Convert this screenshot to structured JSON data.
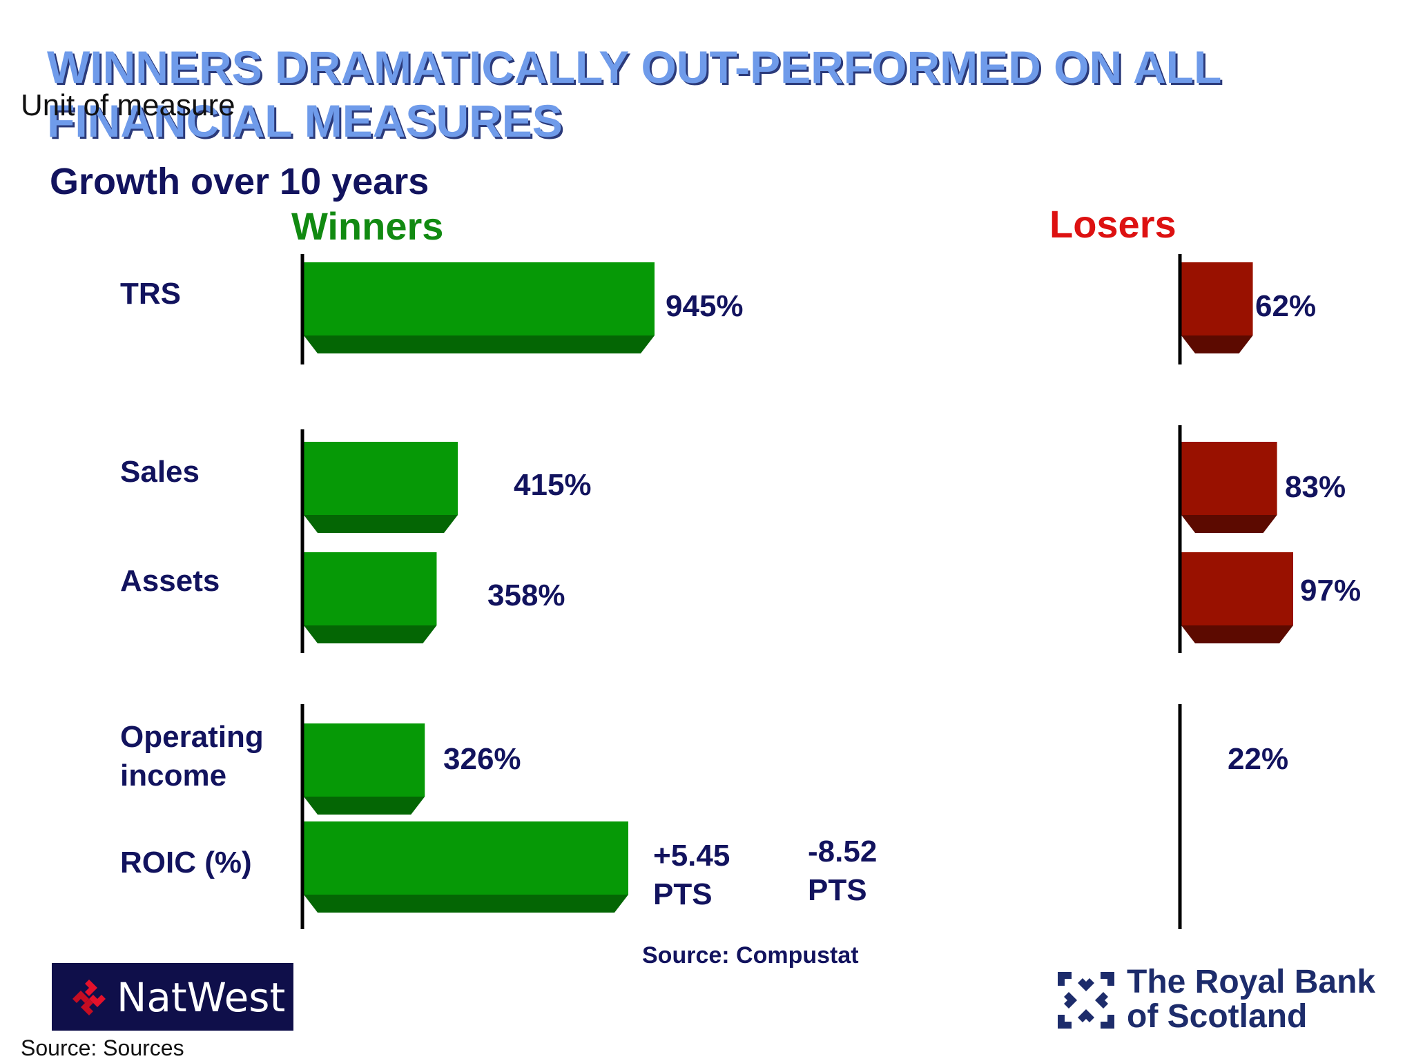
{
  "title": "WINNERS DRAMATICALLY OUT-PERFORMED ON ALL FINANCIAL MEASURES",
  "unit_label": "Unit of measure",
  "subtitle": "Growth over 10 years",
  "source_note": "Source: Compustat",
  "source_footer": "Source: Sources",
  "logos": {
    "natwest": "NatWest",
    "rbs": "The Royal Bank of Scotland"
  },
  "colors": {
    "winners_bar": "#069906",
    "winners_shade": "#046604",
    "losers_bar": "#991100",
    "losers_shade": "#5c0a00",
    "text": "#12135e",
    "title": "#6f9bea"
  },
  "chart_data": [
    {
      "type": "bar",
      "orientation": "horizontal",
      "group": "Winners",
      "categories": [
        "TRS",
        "Sales",
        "Assets",
        "Operating income",
        "ROIC (%)"
      ],
      "values": [
        945,
        415,
        358,
        326,
        5.45
      ],
      "value_labels": [
        "945%",
        "415%",
        "358%",
        "326%",
        "+5.45 PTS"
      ],
      "units": [
        "%",
        "%",
        "%",
        "%",
        "PTS"
      ]
    },
    {
      "type": "bar",
      "orientation": "horizontal",
      "group": "Losers",
      "categories": [
        "TRS",
        "Sales",
        "Assets",
        "Operating income",
        "ROIC (%)"
      ],
      "values": [
        62,
        83,
        97,
        22,
        -8.52
      ],
      "value_labels": [
        "62%",
        "83%",
        "97%",
        "22%",
        "-8.52 PTS"
      ],
      "units": [
        "%",
        "%",
        "%",
        "%",
        "PTS"
      ]
    }
  ]
}
